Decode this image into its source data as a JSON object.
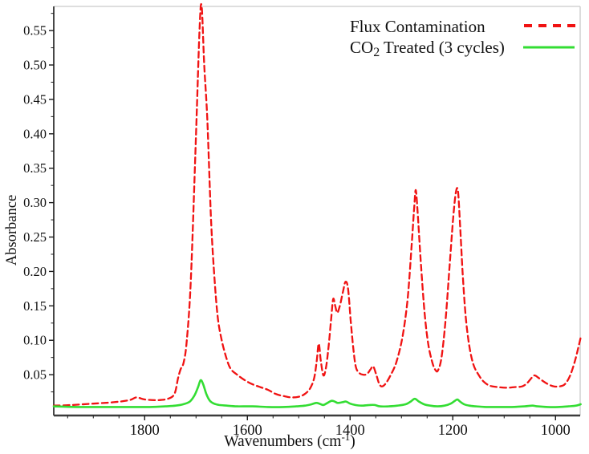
{
  "figure": {
    "background": "#ffffff"
  },
  "colors": {
    "axis": "#1a1a1a",
    "bottom_axis": "#3c3c3c",
    "frame": "#c9c9c9",
    "text": "#111111",
    "flux_red": "#f01212",
    "co2_green": "#33dd33"
  },
  "chart_data": {
    "type": "line",
    "title": "",
    "xlabel": "Wavenumbers (cm⁻¹)",
    "xlabel_parts": {
      "pre": "Wavenumbers (cm",
      "sup": "-1",
      "post": ")"
    },
    "ylabel": "Absorbance",
    "grid": false,
    "x_axis": {
      "reversed": true,
      "range": [
        1977,
        952
      ],
      "ticks": [
        1800,
        1600,
        1400,
        1200,
        1000
      ],
      "minor_step": 50
    },
    "y_axis": {
      "range": [
        -0.0093,
        0.5851
      ],
      "ticks": [
        0.05,
        0.1,
        0.15,
        0.2,
        0.25,
        0.3,
        0.35,
        0.4,
        0.45,
        0.5,
        0.55
      ],
      "minor_step": 0.025,
      "tick_decimals": 2
    },
    "legend": {
      "position": "top-right",
      "entries": [
        {
          "label": "Flux Contamination",
          "label_parts": [
            [
              "t",
              "Flux Contamination"
            ]
          ],
          "color": "#f01212",
          "line_style": "dashed"
        },
        {
          "label": "CO2 Treated (3 cycles)",
          "label_parts": [
            [
              "t",
              "CO"
            ],
            [
              "sub",
              "2"
            ],
            [
              "t",
              " Treated (3 cycles)"
            ]
          ],
          "color": "#33dd33",
          "line_style": "solid"
        }
      ]
    },
    "series": [
      {
        "name": "Flux Contamination",
        "color": "#f01212",
        "style": "dashed",
        "points": [
          [
            1977,
            0.005
          ],
          [
            1940,
            0.006
          ],
          [
            1900,
            0.008
          ],
          [
            1860,
            0.01
          ],
          [
            1830,
            0.013
          ],
          [
            1816,
            0.017
          ],
          [
            1800,
            0.014
          ],
          [
            1775,
            0.013
          ],
          [
            1755,
            0.015
          ],
          [
            1742,
            0.022
          ],
          [
            1735,
            0.045
          ],
          [
            1730,
            0.058
          ],
          [
            1724,
            0.068
          ],
          [
            1718,
            0.1
          ],
          [
            1710,
            0.19
          ],
          [
            1700,
            0.4
          ],
          [
            1693,
            0.555
          ],
          [
            1689,
            0.585
          ],
          [
            1684,
            0.5
          ],
          [
            1678,
            0.42
          ],
          [
            1671,
            0.28
          ],
          [
            1665,
            0.2
          ],
          [
            1658,
            0.135
          ],
          [
            1650,
            0.1
          ],
          [
            1640,
            0.072
          ],
          [
            1632,
            0.058
          ],
          [
            1620,
            0.05
          ],
          [
            1605,
            0.042
          ],
          [
            1590,
            0.036
          ],
          [
            1575,
            0.032
          ],
          [
            1560,
            0.028
          ],
          [
            1545,
            0.022
          ],
          [
            1530,
            0.019
          ],
          [
            1515,
            0.017
          ],
          [
            1500,
            0.018
          ],
          [
            1488,
            0.022
          ],
          [
            1478,
            0.03
          ],
          [
            1470,
            0.045
          ],
          [
            1465,
            0.07
          ],
          [
            1461,
            0.095
          ],
          [
            1457,
            0.07
          ],
          [
            1452,
            0.049
          ],
          [
            1447,
            0.06
          ],
          [
            1442,
            0.09
          ],
          [
            1437,
            0.13
          ],
          [
            1433,
            0.16
          ],
          [
            1429,
            0.15
          ],
          [
            1425,
            0.14
          ],
          [
            1420,
            0.15
          ],
          [
            1414,
            0.17
          ],
          [
            1409,
            0.185
          ],
          [
            1404,
            0.175
          ],
          [
            1399,
            0.13
          ],
          [
            1394,
            0.09
          ],
          [
            1389,
            0.062
          ],
          [
            1383,
            0.053
          ],
          [
            1375,
            0.05
          ],
          [
            1367,
            0.051
          ],
          [
            1360,
            0.058
          ],
          [
            1355,
            0.062
          ],
          [
            1349,
            0.05
          ],
          [
            1344,
            0.038
          ],
          [
            1339,
            0.033
          ],
          [
            1332,
            0.036
          ],
          [
            1322,
            0.048
          ],
          [
            1310,
            0.068
          ],
          [
            1298,
            0.105
          ],
          [
            1288,
            0.16
          ],
          [
            1280,
            0.24
          ],
          [
            1275,
            0.295
          ],
          [
            1272,
            0.318
          ],
          [
            1268,
            0.28
          ],
          [
            1262,
            0.21
          ],
          [
            1255,
            0.14
          ],
          [
            1248,
            0.095
          ],
          [
            1240,
            0.068
          ],
          [
            1234,
            0.057
          ],
          [
            1229,
            0.056
          ],
          [
            1222,
            0.075
          ],
          [
            1214,
            0.13
          ],
          [
            1206,
            0.21
          ],
          [
            1199,
            0.28
          ],
          [
            1194,
            0.315
          ],
          [
            1190,
            0.317
          ],
          [
            1186,
            0.27
          ],
          [
            1181,
            0.2
          ],
          [
            1175,
            0.135
          ],
          [
            1168,
            0.092
          ],
          [
            1160,
            0.065
          ],
          [
            1150,
            0.05
          ],
          [
            1140,
            0.04
          ],
          [
            1128,
            0.034
          ],
          [
            1112,
            0.032
          ],
          [
            1095,
            0.031
          ],
          [
            1080,
            0.032
          ],
          [
            1065,
            0.033
          ],
          [
            1055,
            0.038
          ],
          [
            1047,
            0.045
          ],
          [
            1041,
            0.049
          ],
          [
            1034,
            0.046
          ],
          [
            1025,
            0.041
          ],
          [
            1014,
            0.036
          ],
          [
            1003,
            0.033
          ],
          [
            992,
            0.033
          ],
          [
            982,
            0.036
          ],
          [
            972,
            0.048
          ],
          [
            963,
            0.068
          ],
          [
            956,
            0.088
          ],
          [
            951,
            0.104
          ]
        ]
      },
      {
        "name": "CO2 Treated (3 cycles)",
        "color": "#33dd33",
        "style": "solid",
        "points": [
          [
            1977,
            0.004
          ],
          [
            1930,
            0.003
          ],
          [
            1880,
            0.003
          ],
          [
            1830,
            0.003
          ],
          [
            1790,
            0.003
          ],
          [
            1760,
            0.004
          ],
          [
            1740,
            0.005
          ],
          [
            1725,
            0.007
          ],
          [
            1712,
            0.011
          ],
          [
            1703,
            0.02
          ],
          [
            1696,
            0.032
          ],
          [
            1691,
            0.042
          ],
          [
            1686,
            0.036
          ],
          [
            1680,
            0.022
          ],
          [
            1673,
            0.012
          ],
          [
            1665,
            0.008
          ],
          [
            1655,
            0.006
          ],
          [
            1640,
            0.005
          ],
          [
            1620,
            0.004
          ],
          [
            1590,
            0.004
          ],
          [
            1560,
            0.003
          ],
          [
            1530,
            0.003
          ],
          [
            1505,
            0.004
          ],
          [
            1488,
            0.005
          ],
          [
            1475,
            0.007
          ],
          [
            1466,
            0.009
          ],
          [
            1460,
            0.008
          ],
          [
            1452,
            0.006
          ],
          [
            1444,
            0.009
          ],
          [
            1436,
            0.012
          ],
          [
            1430,
            0.011
          ],
          [
            1424,
            0.009
          ],
          [
            1415,
            0.01
          ],
          [
            1408,
            0.011
          ],
          [
            1400,
            0.008
          ],
          [
            1390,
            0.006
          ],
          [
            1378,
            0.005
          ],
          [
            1362,
            0.006
          ],
          [
            1352,
            0.006
          ],
          [
            1342,
            0.004
          ],
          [
            1325,
            0.004
          ],
          [
            1308,
            0.005
          ],
          [
            1292,
            0.007
          ],
          [
            1282,
            0.011
          ],
          [
            1274,
            0.015
          ],
          [
            1266,
            0.011
          ],
          [
            1256,
            0.007
          ],
          [
            1244,
            0.005
          ],
          [
            1230,
            0.004
          ],
          [
            1216,
            0.005
          ],
          [
            1204,
            0.008
          ],
          [
            1196,
            0.012
          ],
          [
            1191,
            0.014
          ],
          [
            1186,
            0.011
          ],
          [
            1178,
            0.007
          ],
          [
            1168,
            0.005
          ],
          [
            1155,
            0.004
          ],
          [
            1135,
            0.003
          ],
          [
            1110,
            0.003
          ],
          [
            1085,
            0.003
          ],
          [
            1060,
            0.004
          ],
          [
            1045,
            0.005
          ],
          [
            1035,
            0.004
          ],
          [
            1015,
            0.003
          ],
          [
            995,
            0.003
          ],
          [
            975,
            0.004
          ],
          [
            960,
            0.005
          ],
          [
            951,
            0.007
          ]
        ]
      }
    ]
  }
}
